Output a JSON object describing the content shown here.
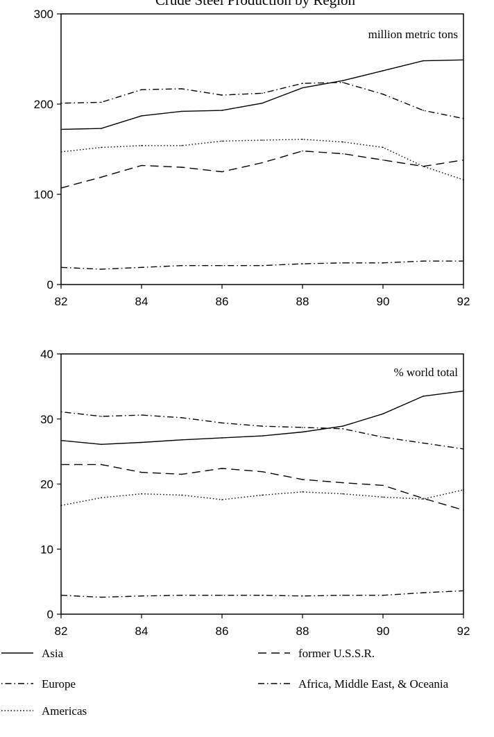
{
  "title": "Crude Steel Production by Region",
  "chart_data": [
    {
      "type": "line",
      "unit_label": "million metric tons",
      "x": [
        82,
        83,
        84,
        85,
        86,
        87,
        88,
        89,
        90,
        91,
        92
      ],
      "xticks": [
        82,
        84,
        86,
        88,
        90,
        92
      ],
      "xlim": [
        82,
        92
      ],
      "ylim": [
        0,
        300
      ],
      "yticks": [
        0,
        100,
        200,
        300
      ],
      "grid": false,
      "series": [
        {
          "name": "Asia",
          "style": "solid",
          "values": [
            172,
            173,
            187,
            192,
            193,
            201,
            218,
            226,
            237,
            248,
            249
          ]
        },
        {
          "name": "Europe",
          "style": "dot-dash",
          "values": [
            201,
            202,
            216,
            217,
            210,
            212,
            223,
            224,
            211,
            193,
            184
          ]
        },
        {
          "name": "Americas",
          "style": "dotted",
          "values": [
            147,
            152,
            154,
            154,
            159,
            160,
            161,
            158,
            152,
            131,
            116
          ]
        },
        {
          "name": "former U.S.S.R.",
          "style": "dashed",
          "values": [
            107,
            119,
            132,
            130,
            125,
            135,
            148,
            145,
            138,
            131,
            138
          ]
        },
        {
          "name": "Africa, Middle East, & Oceania",
          "style": "dash-dot",
          "values": [
            19,
            17,
            19,
            21,
            21,
            21,
            23,
            24,
            24,
            26,
            26
          ]
        }
      ]
    },
    {
      "type": "line",
      "unit_label": "% world total",
      "x": [
        82,
        83,
        84,
        85,
        86,
        87,
        88,
        89,
        90,
        91,
        92
      ],
      "xticks": [
        82,
        84,
        86,
        88,
        90,
        92
      ],
      "xlim": [
        82,
        92
      ],
      "ylim": [
        0,
        40
      ],
      "yticks": [
        0,
        10,
        20,
        30,
        40
      ],
      "grid": false,
      "series": [
        {
          "name": "Asia",
          "style": "solid",
          "values": [
            26.7,
            26.1,
            26.4,
            26.8,
            27.1,
            27.4,
            28.0,
            28.9,
            30.8,
            33.5,
            34.3
          ]
        },
        {
          "name": "Europe",
          "style": "dot-dash",
          "values": [
            31.1,
            30.4,
            30.6,
            30.2,
            29.4,
            28.9,
            28.7,
            28.5,
            27.2,
            26.3,
            25.4
          ]
        },
        {
          "name": "Americas",
          "style": "dotted",
          "values": [
            16.7,
            17.9,
            18.5,
            18.3,
            17.6,
            18.3,
            18.8,
            18.5,
            18.0,
            17.7,
            19.1
          ]
        },
        {
          "name": "former U.S.S.R.",
          "style": "dashed",
          "values": [
            23.0,
            23.0,
            21.8,
            21.5,
            22.4,
            21.9,
            20.7,
            20.2,
            19.8,
            17.8,
            16.0
          ]
        },
        {
          "name": "Africa, Middle East, & Oceania",
          "style": "dash-dot",
          "values": [
            2.9,
            2.6,
            2.8,
            2.9,
            2.9,
            2.9,
            2.8,
            2.9,
            2.9,
            3.3,
            3.6
          ]
        }
      ]
    }
  ],
  "legend": {
    "placement": "bottom",
    "items": [
      {
        "label": "Asia",
        "style": "solid"
      },
      {
        "label": "former U.S.S.R.",
        "style": "dashed"
      },
      {
        "label": "Europe",
        "style": "dot-dash"
      },
      {
        "label": "Africa, Middle East, & Oceania",
        "style": "dash-dot"
      },
      {
        "label": "Americas",
        "style": "dotted"
      }
    ]
  }
}
